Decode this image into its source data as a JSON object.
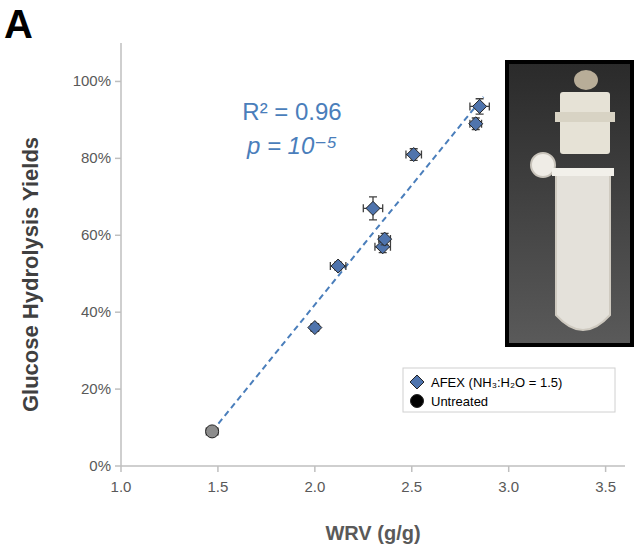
{
  "chart_data": {
    "type": "scatter",
    "panel": "A",
    "x_label": "WRV (g/g)",
    "y_label": "Glucose Hydrolysis Yields",
    "xlim": [
      1.0,
      3.6
    ],
    "ylim": [
      0,
      110
    ],
    "xticks": [
      {
        "value": 1.0,
        "label": "1.0"
      },
      {
        "value": 1.5,
        "label": "1.5"
      },
      {
        "value": 2.0,
        "label": "2.0"
      },
      {
        "value": 2.5,
        "label": "2.5"
      },
      {
        "value": 3.0,
        "label": "3.0"
      },
      {
        "value": 3.5,
        "label": "3.5"
      }
    ],
    "yticks": [
      {
        "value": 0,
        "label": "0%"
      },
      {
        "value": 20,
        "label": "20%"
      },
      {
        "value": 40,
        "label": "40%"
      },
      {
        "value": 60,
        "label": "60%"
      },
      {
        "value": 80,
        "label": "80%"
      },
      {
        "value": 100,
        "label": "100%"
      }
    ],
    "grid": false,
    "legend": "lower right",
    "series": [
      {
        "name": "AFEX (NH₃:H₂O = 1.5)",
        "color": "#4f74ad",
        "marker": "diamond",
        "x": [
          2.0,
          2.12,
          2.3,
          2.35,
          2.36,
          2.51,
          2.83,
          2.85
        ],
        "values": [
          36,
          52,
          67,
          57,
          59,
          81,
          89,
          93.5
        ],
        "x_error": [
          0.02,
          0.04,
          0.05,
          0.04,
          0.03,
          0.04,
          0.03,
          0.05
        ],
        "y_error": [
          1,
          1,
          3,
          1.5,
          1.5,
          1.5,
          1.5,
          2
        ]
      },
      {
        "name": "Untreated",
        "color": "#8c8c8c",
        "marker": "circle",
        "x": [
          1.47
        ],
        "values": [
          9
        ],
        "x_error": [
          0.03
        ],
        "y_error": [
          1
        ]
      }
    ],
    "fit_line": {
      "x": [
        1.47,
        2.87
      ],
      "values": [
        9,
        96
      ],
      "color": "#4a7ebb",
      "line_style": "dashed"
    },
    "annotations": [
      "R² = 0.96",
      "p = 10⁻⁵"
    ]
  }
}
